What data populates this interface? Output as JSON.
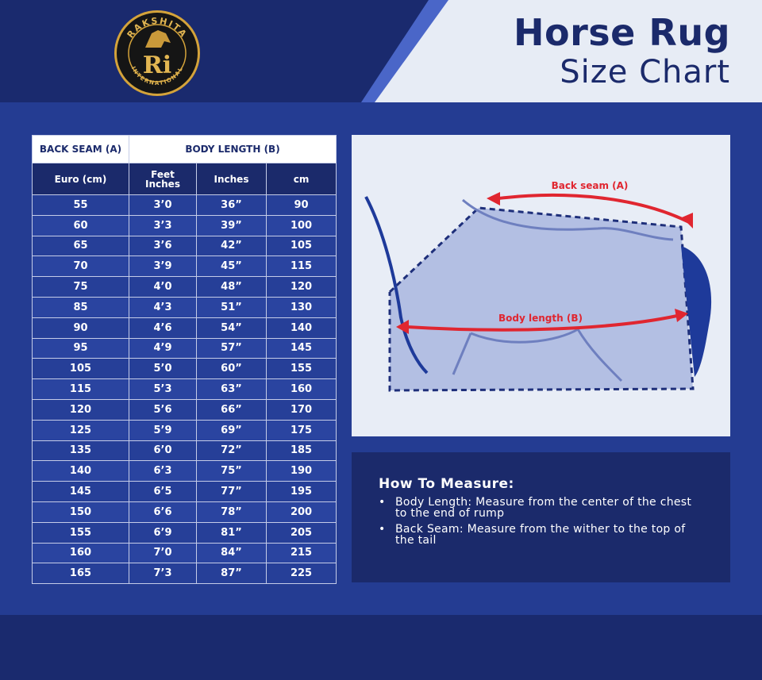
{
  "brand": {
    "name_top": "RAKSHITA",
    "name_bottom": "INTERNATIONAL",
    "monogram": "Ri"
  },
  "header": {
    "title_line1": "Horse Rug",
    "title_line2": "Size Chart"
  },
  "colors": {
    "navy": "#1b2a6b",
    "royal_blue": "#243c92",
    "light_panel": "#e8edf6",
    "arrow_red": "#e02630",
    "gold": "#d4a33a"
  },
  "chart_data": {
    "type": "table",
    "group_headers": [
      "BACK SEAM (A)",
      "BODY LENGTH (B)"
    ],
    "columns": [
      "Euro (cm)",
      "Feet Inches",
      "Inches",
      "cm"
    ],
    "rows": [
      [
        "55",
        "3’0",
        "36”",
        "90"
      ],
      [
        "60",
        "3’3",
        "39”",
        "100"
      ],
      [
        "65",
        "3’6",
        "42”",
        "105"
      ],
      [
        "70",
        "3’9",
        "45”",
        "115"
      ],
      [
        "75",
        "4’0",
        "48”",
        "120"
      ],
      [
        "85",
        "4’3",
        "51”",
        "130"
      ],
      [
        "90",
        "4’6",
        "54”",
        "140"
      ],
      [
        "95",
        "4’9",
        "57”",
        "145"
      ],
      [
        "105",
        "5’0",
        "60”",
        "155"
      ],
      [
        "115",
        "5’3",
        "63”",
        "160"
      ],
      [
        "120",
        "5’6",
        "66”",
        "170"
      ],
      [
        "125",
        "5’9",
        "69”",
        "175"
      ],
      [
        "135",
        "6’0",
        "72”",
        "185"
      ],
      [
        "140",
        "6’3",
        "75”",
        "190"
      ],
      [
        "145",
        "6’5",
        "77”",
        "195"
      ],
      [
        "150",
        "6’6",
        "78”",
        "200"
      ],
      [
        "155",
        "6’9",
        "81”",
        "205"
      ],
      [
        "160",
        "7’0",
        "84”",
        "215"
      ],
      [
        "165",
        "7’3",
        "87”",
        "225"
      ]
    ]
  },
  "diagram": {
    "back_seam_label": "Back seam (A)",
    "body_length_label": "Body length (B)"
  },
  "how_to_measure": {
    "title": "How To Measure:",
    "items": [
      "Body Length: Measure from the center of the chest to the end of rump",
      "Back Seam: Measure from the wither to the top of the tail"
    ]
  }
}
